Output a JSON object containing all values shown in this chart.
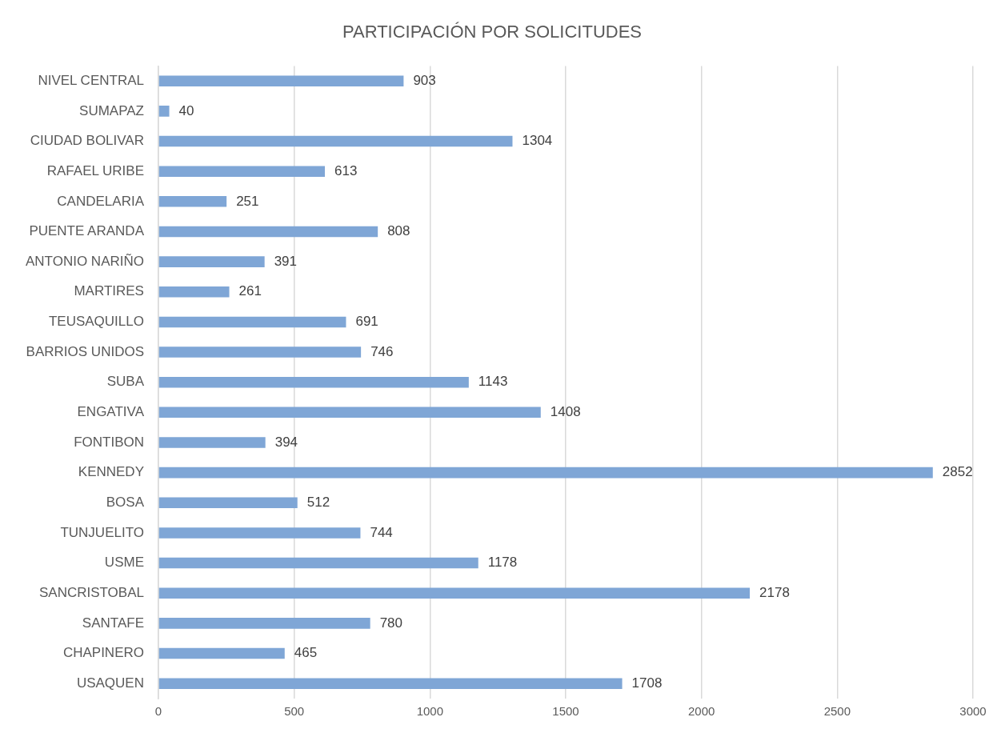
{
  "chart_data": {
    "type": "bar",
    "title": "PARTICIPACIÓN POR SOLICITUDES",
    "orientation": "horizontal",
    "categories": [
      "NIVEL CENTRAL",
      "SUMAPAZ",
      "CIUDAD BOLIVAR",
      "RAFAEL URIBE",
      "CANDELARIA",
      "PUENTE ARANDA",
      "ANTONIO NARIÑO",
      "MARTIRES",
      "TEUSAQUILLO",
      "BARRIOS UNIDOS",
      "SUBA",
      "ENGATIVA",
      "FONTIBON",
      "KENNEDY",
      "BOSA",
      "TUNJUELITO",
      "USME",
      "SANCRISTOBAL",
      "SANTAFE",
      "CHAPINERO",
      "USAQUEN"
    ],
    "values": [
      903,
      40,
      1304,
      613,
      251,
      808,
      391,
      261,
      691,
      746,
      1143,
      1408,
      394,
      2852,
      512,
      744,
      1178,
      2178,
      780,
      465,
      1708
    ],
    "color": "#7fa6d6",
    "xlim": [
      0,
      3000
    ],
    "xticks": [
      0,
      500,
      1000,
      1500,
      2000,
      2500,
      3000
    ],
    "grid": "x",
    "data_labels": true,
    "legend": false
  }
}
